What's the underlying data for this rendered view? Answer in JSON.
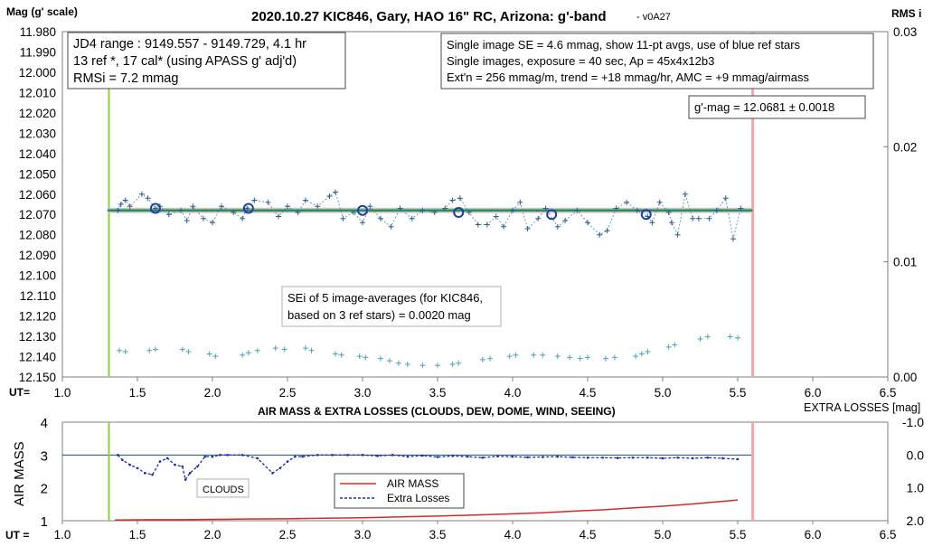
{
  "top_chart": {
    "title": "2020.10.27 KIC846, Gary, HAO 16\" RC, Arizona: g'-band",
    "version": "- v0A27",
    "y_label": "Mag (g' scale)",
    "y2_label": "RMS i",
    "x_label": "UT=",
    "y_ticks": [
      "11.980",
      "11.990",
      "12.000",
      "12.010",
      "12.020",
      "12.030",
      "12.040",
      "12.050",
      "12.060",
      "12.070",
      "12.080",
      "12.090",
      "12.100",
      "12.110",
      "12.120",
      "12.130",
      "12.140",
      "12.150"
    ],
    "y2_ticks": [
      "0.03",
      "0.02",
      "0.01",
      "0.00"
    ],
    "x_ticks": [
      "1.0",
      "1.5",
      "2.0",
      "2.5",
      "3.0",
      "3.5",
      "4.0",
      "4.5",
      "5.0",
      "5.5",
      "6.0",
      "6.5"
    ],
    "info_box_left": [
      "JD4 range : 9149.557 - 9149.729,  4.1  hr",
      "13 ref *, 17 cal* (using APASS g' adj'd)",
      "RMSi = 7.2 mmag"
    ],
    "info_box_right": [
      "Single image SE = 4.6 mmag, show  11-pt avgs, use of blue ref stars",
      "Single images, exposure = 40 sec, Ap = 45x4x12b3",
      "Ext'n = 256 mmag/m, trend =  +18 mmag/hr, AMC = +9 mmag/airmass"
    ],
    "result_box": "g'-mag = 12.0681 ± 0.0018",
    "sei_box": [
      "SEi of 5 image-averages (for KIC846,",
      "based on 3 ref stars) = 0.0020 mag"
    ]
  },
  "bottom_chart": {
    "title": "AIR MASS & EXTRA LOSSES (CLOUDS, DEW, DOME, WIND, SEEING)",
    "y_label": "AIR MASS",
    "y2_label": "EXTRA LOSSES [mag]",
    "x_label": "UT =",
    "y_ticks": [
      "4",
      "3",
      "2",
      "1"
    ],
    "y2_ticks": [
      "-1.0",
      "0.0",
      "1.0",
      "2.0"
    ],
    "x_ticks": [
      "1.0",
      "1.5",
      "2.0",
      "2.5",
      "3.0",
      "3.5",
      "4.0",
      "4.5",
      "5.0",
      "5.5",
      "6.0",
      "6.5"
    ],
    "legend": [
      "AIR MASS",
      "Extra Losses"
    ],
    "annotation": "CLOUDS"
  },
  "chart_data": [
    {
      "type": "scatter",
      "title": "2020.10.27 KIC846, Gary, HAO 16\" RC, Arizona: g'-band",
      "xlabel": "UT=",
      "ylabel": "Mag (g' scale)",
      "xlim": [
        1.0,
        6.5
      ],
      "ylim": [
        12.15,
        11.98
      ],
      "y2lim": [
        0.0,
        0.03
      ],
      "colors": {
        "single": "#2e5e8a",
        "average": "#1f3fa0",
        "fit": "#2e8b57",
        "rms": "#4aa3b8",
        "start_line": "#8ccf3f",
        "end_line": "#f4a6a6"
      },
      "vertical_lines": [
        1.31,
        5.6
      ],
      "fit_line": {
        "x": [
          1.3,
          5.6
        ],
        "y": [
          12.068,
          12.068
        ]
      },
      "averages": {
        "x": [
          1.62,
          2.24,
          3.0,
          3.64,
          4.26,
          4.89
        ],
        "y": [
          12.067,
          12.067,
          12.068,
          12.069,
          12.07,
          12.07
        ]
      },
      "single_images": {
        "x": [
          1.37,
          1.39,
          1.42,
          1.45,
          1.53,
          1.57,
          1.62,
          1.65,
          1.71,
          1.79,
          1.83,
          1.87,
          1.94,
          2.0,
          2.06,
          2.14,
          2.2,
          2.23,
          2.28,
          2.37,
          2.44,
          2.5,
          2.57,
          2.62,
          2.7,
          2.78,
          2.82,
          2.87,
          2.94,
          3.0,
          3.05,
          3.12,
          3.19,
          3.25,
          3.33,
          3.4,
          3.48,
          3.55,
          3.6,
          3.65,
          3.71,
          3.77,
          3.83,
          3.89,
          3.94,
          4.0,
          4.05,
          4.1,
          4.17,
          4.22,
          4.3,
          4.35,
          4.43,
          4.5,
          4.58,
          4.63,
          4.69,
          4.76,
          4.83,
          4.9,
          4.93,
          4.98,
          5.04,
          5.06,
          5.1,
          5.15,
          5.2,
          5.24,
          5.31,
          5.36,
          5.42,
          5.47,
          5.52
        ],
        "y": [
          12.068,
          12.065,
          12.063,
          12.066,
          12.06,
          12.062,
          12.067,
          12.066,
          12.07,
          12.068,
          12.073,
          12.066,
          12.072,
          12.074,
          12.066,
          12.069,
          12.072,
          12.067,
          12.063,
          12.064,
          12.071,
          12.066,
          12.069,
          12.063,
          12.066,
          12.061,
          12.059,
          12.072,
          12.069,
          12.074,
          12.066,
          12.072,
          12.076,
          12.067,
          12.072,
          12.068,
          12.069,
          12.067,
          12.063,
          12.062,
          12.069,
          12.075,
          12.075,
          12.071,
          12.076,
          12.068,
          12.064,
          12.077,
          12.072,
          12.067,
          12.076,
          12.073,
          12.068,
          12.074,
          12.08,
          12.078,
          12.067,
          12.064,
          12.068,
          12.071,
          12.074,
          12.064,
          12.069,
          12.074,
          12.08,
          12.06,
          12.072,
          12.072,
          12.072,
          12.068,
          12.062,
          12.082,
          12.067
        ]
      },
      "rms_series": {
        "x": [
          1.38,
          1.42,
          1.58,
          1.62,
          1.8,
          1.84,
          1.98,
          2.02,
          2.2,
          2.24,
          2.3,
          2.42,
          2.48,
          2.62,
          2.66,
          2.82,
          2.86,
          2.98,
          3.02,
          3.12,
          3.18,
          3.24,
          3.3,
          3.4,
          3.5,
          3.6,
          3.64,
          3.8,
          3.85,
          3.98,
          4.02,
          4.14,
          4.2,
          4.3,
          4.38,
          4.45,
          4.5,
          4.62,
          4.68,
          4.82,
          4.86,
          4.9,
          5.04,
          5.08,
          5.25,
          5.3,
          5.45,
          5.5
        ],
        "y": [
          0.0023,
          0.0022,
          0.0023,
          0.0024,
          0.0024,
          0.0022,
          0.002,
          0.0018,
          0.0019,
          0.0021,
          0.0023,
          0.0025,
          0.0024,
          0.0025,
          0.0023,
          0.002,
          0.0019,
          0.0018,
          0.0017,
          0.0016,
          0.0014,
          0.0012,
          0.0011,
          0.001,
          0.001,
          0.0011,
          0.0012,
          0.0015,
          0.0016,
          0.0018,
          0.0019,
          0.0019,
          0.0019,
          0.0018,
          0.0017,
          0.0016,
          0.0017,
          0.0016,
          0.0017,
          0.0018,
          0.002,
          0.0022,
          0.0026,
          0.0028,
          0.0033,
          0.0035,
          0.0035,
          0.0034
        ]
      }
    },
    {
      "type": "line",
      "title": "AIR MASS & EXTRA LOSSES (CLOUDS, DEW, DOME, WIND, SEEING)",
      "xlabel": "UT =",
      "ylabel": "AIR MASS",
      "xlim": [
        1.0,
        6.5
      ],
      "ylim": [
        1,
        4
      ],
      "y2lim": [
        2.0,
        -1.0
      ],
      "vertical_lines": [
        1.31,
        5.6
      ],
      "reference_line": 0.0,
      "series": [
        {
          "name": "AIR MASS",
          "color": "#d22b2b",
          "x": [
            1.35,
            1.6,
            1.8,
            2.0,
            2.2,
            2.5,
            2.8,
            3.0,
            3.2,
            3.5,
            3.8,
            4.0,
            4.2,
            4.4,
            4.6,
            4.8,
            5.0,
            5.2,
            5.5
          ],
          "y": [
            1.02,
            1.03,
            1.03,
            1.04,
            1.05,
            1.06,
            1.08,
            1.09,
            1.11,
            1.14,
            1.18,
            1.21,
            1.24,
            1.29,
            1.33,
            1.39,
            1.44,
            1.51,
            1.63
          ]
        },
        {
          "name": "Extra Losses",
          "color": "#1f2fa5",
          "x": [
            1.37,
            1.4,
            1.45,
            1.5,
            1.55,
            1.6,
            1.65,
            1.7,
            1.75,
            1.8,
            1.82,
            1.85,
            1.9,
            1.95,
            2.0,
            2.05,
            2.1,
            2.2,
            2.3,
            2.4,
            2.45,
            2.5,
            2.55,
            2.6,
            2.7,
            2.8,
            2.9,
            3.0,
            3.1,
            3.2,
            3.3,
            3.4,
            3.5,
            3.6,
            3.7,
            3.8,
            3.9,
            4.0,
            4.1,
            4.2,
            4.3,
            4.4,
            4.5,
            4.6,
            4.7,
            4.8,
            4.9,
            5.0,
            5.1,
            5.2,
            5.3,
            5.4,
            5.5
          ],
          "y": [
            0.0,
            0.15,
            0.3,
            0.4,
            0.55,
            0.6,
            0.2,
            0.1,
            0.3,
            0.35,
            0.75,
            0.55,
            0.35,
            0.05,
            0.05,
            0.0,
            0.0,
            0.0,
            0.1,
            0.55,
            0.4,
            0.2,
            0.05,
            0.05,
            0.0,
            0.0,
            0.0,
            0.0,
            0.03,
            0.0,
            0.05,
            0.02,
            0.06,
            0.03,
            0.05,
            0.08,
            0.04,
            0.05,
            0.07,
            0.06,
            0.05,
            0.07,
            0.08,
            0.08,
            0.09,
            0.08,
            0.08,
            0.1,
            0.08,
            0.1,
            0.08,
            0.1,
            0.13
          ]
        }
      ]
    }
  ]
}
